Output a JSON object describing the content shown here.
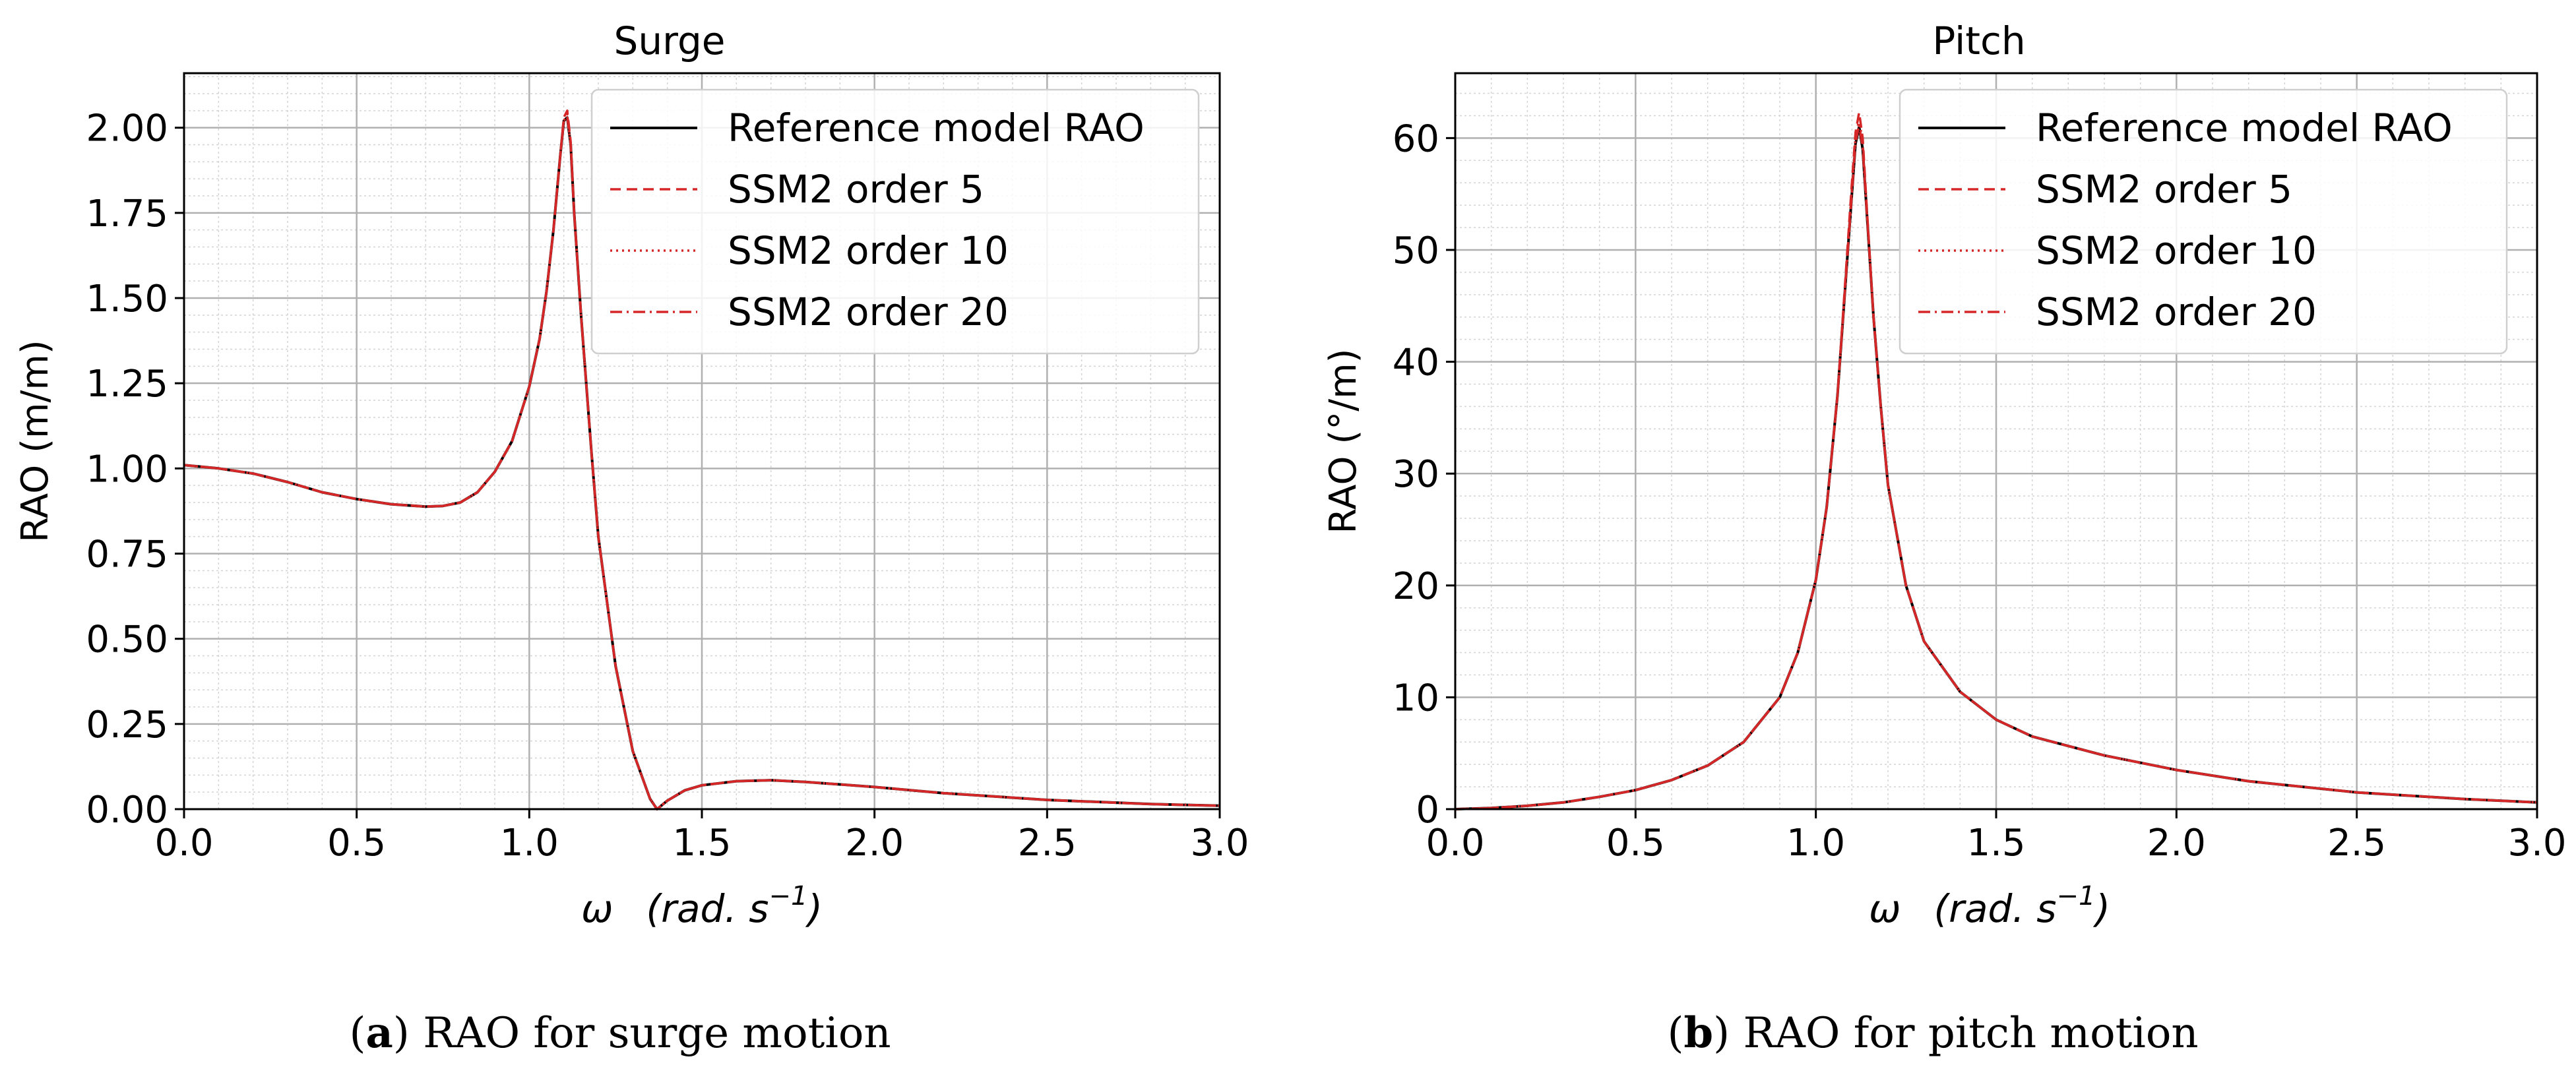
{
  "chart_data": [
    {
      "type": "line",
      "title": "Surge",
      "xlabel_symbol": "ω",
      "xlabel_units": "(rad. s",
      "xlabel_exp": "−1",
      "xlabel_close": ")",
      "ylabel": "RAO (m/m)",
      "xlim": [
        0,
        3.0
      ],
      "ylim": [
        0,
        2.16
      ],
      "xticks": [
        "0.0",
        "0.5",
        "1.0",
        "1.5",
        "2.0",
        "2.5",
        "3.0"
      ],
      "xtick_values": [
        0,
        0.5,
        1.0,
        1.5,
        2.0,
        2.5,
        3.0
      ],
      "yticks": [
        "0.00",
        "0.25",
        "0.50",
        "0.75",
        "1.00",
        "1.25",
        "1.50",
        "1.75",
        "2.00"
      ],
      "ytick_values": [
        0,
        0.25,
        0.5,
        0.75,
        1.0,
        1.25,
        1.5,
        1.75,
        2.0
      ],
      "grid": true,
      "legend_position": "top-right",
      "x": [
        0.0,
        0.1,
        0.2,
        0.3,
        0.4,
        0.5,
        0.6,
        0.7,
        0.75,
        0.8,
        0.85,
        0.9,
        0.95,
        1.0,
        1.03,
        1.05,
        1.07,
        1.09,
        1.1,
        1.11,
        1.12,
        1.13,
        1.15,
        1.18,
        1.2,
        1.25,
        1.3,
        1.35,
        1.37,
        1.4,
        1.45,
        1.5,
        1.6,
        1.7,
        1.8,
        2.0,
        2.2,
        2.5,
        2.8,
        3.0
      ],
      "series": [
        {
          "name": "Reference model RAO",
          "color": "#000000",
          "dash": "solid",
          "values": [
            1.01,
            1.0,
            0.985,
            0.96,
            0.93,
            0.91,
            0.895,
            0.888,
            0.89,
            0.9,
            0.93,
            0.99,
            1.08,
            1.24,
            1.38,
            1.52,
            1.7,
            1.92,
            2.02,
            2.03,
            1.95,
            1.75,
            1.45,
            1.05,
            0.8,
            0.42,
            0.17,
            0.03,
            0.0,
            0.025,
            0.055,
            0.07,
            0.082,
            0.085,
            0.08,
            0.065,
            0.047,
            0.027,
            0.015,
            0.01
          ]
        },
        {
          "name": "SSM2 order 5",
          "color": "#d62728",
          "dash": "dashed",
          "values": [
            1.01,
            1.0,
            0.985,
            0.96,
            0.93,
            0.91,
            0.895,
            0.888,
            0.89,
            0.9,
            0.93,
            0.99,
            1.08,
            1.24,
            1.38,
            1.52,
            1.7,
            1.92,
            2.03,
            2.05,
            1.96,
            1.75,
            1.45,
            1.05,
            0.8,
            0.42,
            0.17,
            0.03,
            0.0,
            0.025,
            0.055,
            0.07,
            0.082,
            0.085,
            0.08,
            0.065,
            0.047,
            0.027,
            0.015,
            0.01
          ]
        },
        {
          "name": "SSM2 order 10",
          "color": "#d62728",
          "dash": "dotted",
          "values": [
            1.01,
            1.0,
            0.985,
            0.96,
            0.93,
            0.91,
            0.895,
            0.888,
            0.89,
            0.9,
            0.93,
            0.99,
            1.08,
            1.24,
            1.38,
            1.52,
            1.7,
            1.92,
            2.02,
            2.04,
            1.95,
            1.75,
            1.45,
            1.05,
            0.8,
            0.42,
            0.17,
            0.03,
            0.0,
            0.025,
            0.055,
            0.07,
            0.082,
            0.085,
            0.08,
            0.065,
            0.047,
            0.027,
            0.015,
            0.01
          ]
        },
        {
          "name": "SSM2 order 20",
          "color": "#d62728",
          "dash": "dashdot",
          "values": [
            1.01,
            1.0,
            0.985,
            0.96,
            0.93,
            0.91,
            0.895,
            0.888,
            0.89,
            0.9,
            0.93,
            0.99,
            1.08,
            1.24,
            1.38,
            1.52,
            1.7,
            1.92,
            2.02,
            2.03,
            1.95,
            1.75,
            1.45,
            1.05,
            0.8,
            0.42,
            0.17,
            0.03,
            0.0,
            0.025,
            0.055,
            0.07,
            0.082,
            0.085,
            0.08,
            0.065,
            0.047,
            0.027,
            0.015,
            0.01
          ]
        }
      ],
      "caption_letter": "a",
      "caption_text": "RAO for surge motion"
    },
    {
      "type": "line",
      "title": "Pitch",
      "xlabel_symbol": "ω",
      "xlabel_units": "(rad. s",
      "xlabel_exp": "−1",
      "xlabel_close": ")",
      "ylabel": "RAO (°/m)",
      "xlim": [
        0,
        3.0
      ],
      "ylim": [
        0,
        65.8
      ],
      "xticks": [
        "0.0",
        "0.5",
        "1.0",
        "1.5",
        "2.0",
        "2.5",
        "3.0"
      ],
      "xtick_values": [
        0,
        0.5,
        1.0,
        1.5,
        2.0,
        2.5,
        3.0
      ],
      "yticks": [
        "0",
        "10",
        "20",
        "30",
        "40",
        "50",
        "60"
      ],
      "ytick_values": [
        0,
        10,
        20,
        30,
        40,
        50,
        60
      ],
      "grid": true,
      "legend_position": "top-right",
      "x": [
        0.0,
        0.1,
        0.2,
        0.3,
        0.4,
        0.5,
        0.6,
        0.7,
        0.8,
        0.9,
        0.95,
        1.0,
        1.03,
        1.06,
        1.08,
        1.1,
        1.11,
        1.12,
        1.13,
        1.14,
        1.16,
        1.18,
        1.2,
        1.25,
        1.3,
        1.4,
        1.5,
        1.6,
        1.8,
        2.0,
        2.2,
        2.5,
        2.8,
        3.0
      ],
      "series": [
        {
          "name": "Reference model RAO",
          "color": "#000000",
          "dash": "solid",
          "values": [
            0.0,
            0.1,
            0.3,
            0.6,
            1.1,
            1.7,
            2.6,
            3.9,
            6.0,
            10.0,
            14.0,
            20.5,
            27.0,
            37.0,
            46.0,
            55.0,
            59.5,
            61.0,
            59.0,
            54.0,
            44.0,
            36.0,
            29.0,
            20.0,
            15.0,
            10.5,
            8.0,
            6.5,
            4.8,
            3.5,
            2.5,
            1.5,
            0.9,
            0.6
          ]
        },
        {
          "name": "SSM2 order 5",
          "color": "#d62728",
          "dash": "dashed",
          "values": [
            0.0,
            0.1,
            0.3,
            0.6,
            1.1,
            1.7,
            2.6,
            3.9,
            6.0,
            10.0,
            14.0,
            20.5,
            27.0,
            37.0,
            46.5,
            56.0,
            60.5,
            62.3,
            60.0,
            54.5,
            44.0,
            36.0,
            29.0,
            20.0,
            15.0,
            10.5,
            8.0,
            6.5,
            4.8,
            3.5,
            2.5,
            1.5,
            0.9,
            0.6
          ]
        },
        {
          "name": "SSM2 order 10",
          "color": "#d62728",
          "dash": "dotted",
          "values": [
            0.0,
            0.1,
            0.3,
            0.6,
            1.1,
            1.7,
            2.6,
            3.9,
            6.0,
            10.0,
            14.0,
            20.5,
            27.0,
            37.0,
            46.2,
            55.5,
            60.0,
            61.7,
            59.5,
            54.2,
            44.0,
            36.0,
            29.0,
            20.0,
            15.0,
            10.5,
            8.0,
            6.5,
            4.8,
            3.5,
            2.5,
            1.5,
            0.9,
            0.6
          ]
        },
        {
          "name": "SSM2 order 20",
          "color": "#d62728",
          "dash": "dashdot",
          "values": [
            0.0,
            0.1,
            0.3,
            0.6,
            1.1,
            1.7,
            2.6,
            3.9,
            6.0,
            10.0,
            14.0,
            20.5,
            27.0,
            37.0,
            46.0,
            55.0,
            59.6,
            61.2,
            59.1,
            54.0,
            44.0,
            36.0,
            29.0,
            20.0,
            15.0,
            10.5,
            8.0,
            6.5,
            4.8,
            3.5,
            2.5,
            1.5,
            0.9,
            0.6
          ]
        }
      ],
      "caption_letter": "b",
      "caption_text": "RAO for pitch motion"
    }
  ]
}
